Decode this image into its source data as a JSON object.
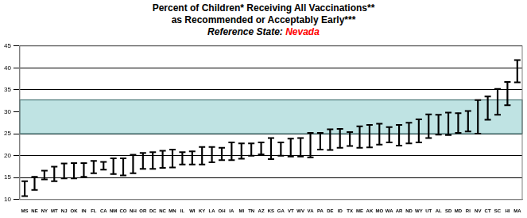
{
  "chart_data": {
    "type": "range",
    "title": [
      "Percent of Children* Receiving All Vaccinations**",
      "as Recommended or Acceptably Early***"
    ],
    "subtitle": "Reference State:",
    "reference_state": "Nevada",
    "reference_range": [
      25,
      32.7
    ],
    "categories": [
      "MS",
      "NE",
      "NY",
      "MT",
      "NJ",
      "OK",
      "IN",
      "FL",
      "CA",
      "NM",
      "CO",
      "NH",
      "OR",
      "DC",
      "NC",
      "MN",
      "IL",
      "WI",
      "KY",
      "LA",
      "OH",
      "IA",
      "MI",
      "TN",
      "AZ",
      "KS",
      "GA",
      "VT",
      "WV",
      "VA",
      "PA",
      "DE",
      "ID",
      "TX",
      "ME",
      "AK",
      "MO",
      "WA",
      "AR",
      "ND",
      "WY",
      "UT",
      "AL",
      "SD",
      "MD",
      "RI",
      "NV",
      "CT",
      "SC",
      "HI",
      "MA"
    ],
    "values": [
      [
        10.8,
        14.2
      ],
      [
        12.2,
        15.2
      ],
      [
        14.6,
        16.6
      ],
      [
        14.2,
        17.5
      ],
      [
        14.8,
        18.2
      ],
      [
        14.8,
        18.3
      ],
      [
        15.2,
        18.3
      ],
      [
        16,
        18.8
      ],
      [
        16.8,
        18.6
      ],
      [
        15.8,
        19.4
      ],
      [
        15.5,
        19.4
      ],
      [
        16,
        20.2
      ],
      [
        17,
        20.6
      ],
      [
        17,
        20.8
      ],
      [
        17.2,
        21.1
      ],
      [
        17.3,
        21.4
      ],
      [
        18,
        20.8
      ],
      [
        18,
        21
      ],
      [
        18,
        22
      ],
      [
        18.5,
        22
      ],
      [
        19,
        21.8
      ],
      [
        19,
        23
      ],
      [
        19.3,
        22.8
      ],
      [
        20,
        22.8
      ],
      [
        20.3,
        23
      ],
      [
        19.2,
        24
      ],
      [
        20,
        23
      ],
      [
        19.8,
        23.9
      ],
      [
        19.8,
        24
      ],
      [
        19.6,
        25.2
      ],
      [
        21.4,
        25.2
      ],
      [
        21.3,
        26
      ],
      [
        21.8,
        26.1
      ],
      [
        22.2,
        25.4
      ],
      [
        21.8,
        26.7
      ],
      [
        21.9,
        27
      ],
      [
        22.5,
        27.3
      ],
      [
        23,
        26.5
      ],
      [
        22.3,
        27
      ],
      [
        22.8,
        27.5
      ],
      [
        23,
        28.3
      ],
      [
        24,
        29.4
      ],
      [
        24.8,
        29.3
      ],
      [
        24.7,
        29.8
      ],
      [
        25.2,
        29.7
      ],
      [
        25.5,
        30.2
      ],
      [
        25,
        32.7
      ],
      [
        28.2,
        33.5
      ],
      [
        29.3,
        35.2
      ],
      [
        31.5,
        36.8
      ],
      [
        36.7,
        41.8
      ]
    ],
    "color": "#000000",
    "ylim": [
      10,
      45
    ],
    "yticks": [
      10,
      15,
      20,
      25,
      30,
      35,
      40,
      45
    ],
    "grid": true
  }
}
